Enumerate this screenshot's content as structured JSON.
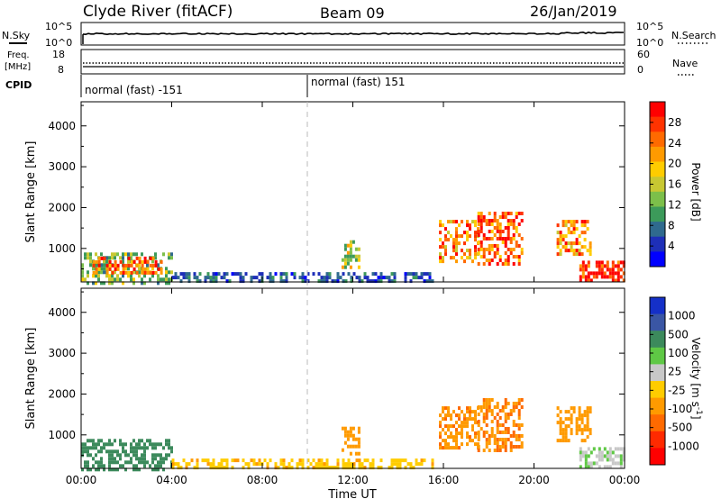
{
  "header": {
    "station": "Clyde River (fitACF)",
    "beam": "Beam 09",
    "date": "26/Jan/2019"
  },
  "top_panels": {
    "nsky_label": "N.Sky",
    "nsky_ticks": [
      "10^5",
      "10^0"
    ],
    "nsearch_label": "N.Search",
    "nsearch_ticks": [
      "10^5",
      "10^0"
    ],
    "freq_label": "Freq.",
    "freq_unit": "[MHz]",
    "freq_ticks": [
      "18",
      "8"
    ],
    "nave_label": "Nave",
    "nave_ticks": [
      "60",
      "0"
    ],
    "cpid_label": "CPID",
    "cpid_segments": [
      {
        "label": "normal (fast) -151",
        "start_hour": 0,
        "end_hour": 10
      },
      {
        "label": "normal (fast) 151",
        "start_hour": 10,
        "end_hour": 24
      }
    ]
  },
  "colorbars": {
    "power": {
      "label": "Power [dB]",
      "ticks": [
        "28",
        "24",
        "20",
        "16",
        "12",
        "8",
        "4"
      ],
      "colors": [
        "#ff0000",
        "#ff3300",
        "#ff6a00",
        "#ff9a00",
        "#ffcc00",
        "#c8c832",
        "#7cbf4a",
        "#3c9a5a",
        "#2f6a8e",
        "#1e2fb8",
        "#0000ff"
      ]
    },
    "velocity": {
      "label": "Velocity [m s^-1]",
      "ticks": [
        "1000",
        "500",
        "100",
        "25",
        "-25",
        "-100",
        "-500",
        "-1000"
      ],
      "colors": [
        "#1530c8",
        "#3a56a4",
        "#3c8a5c",
        "#5fc845",
        "#c8c8c8",
        "#ffcc00",
        "#ff9a00",
        "#ff6a00",
        "#ff2a00",
        "#ff0000"
      ]
    }
  },
  "chart_data": [
    {
      "type": "heatmap",
      "quantity": "Power",
      "ylabel": "Slant Range [km]",
      "ytick_labels": [
        "1000",
        "2000",
        "3000",
        "4000"
      ],
      "ylim": [
        180,
        4590
      ],
      "xlim": [
        0,
        24
      ],
      "scale_label": "Power [dB]",
      "scale_ticks": [
        4,
        8,
        12,
        16,
        20,
        24,
        28
      ],
      "regions": [
        {
          "t0": 0.0,
          "t1": 4.0,
          "r0": 180,
          "r1": 900,
          "level": 16
        },
        {
          "t0": 0.5,
          "t1": 3.5,
          "r0": 400,
          "r1": 800,
          "level": 26
        },
        {
          "t0": 4.0,
          "t1": 15.5,
          "r0": 180,
          "r1": 420,
          "level": 8
        },
        {
          "t0": 11.5,
          "t1": 12.3,
          "r0": 500,
          "r1": 1200,
          "level": 18
        },
        {
          "t0": 15.8,
          "t1": 17.5,
          "r0": 700,
          "r1": 1700,
          "level": 24
        },
        {
          "t0": 17.5,
          "t1": 19.5,
          "r0": 600,
          "r1": 1900,
          "level": 26
        },
        {
          "t0": 21.0,
          "t1": 22.5,
          "r0": 900,
          "r1": 1700,
          "level": 24
        },
        {
          "t0": 22.0,
          "t1": 24.0,
          "r0": 180,
          "r1": 700,
          "level": 28
        }
      ]
    },
    {
      "type": "heatmap",
      "quantity": "Velocity",
      "ylabel": "Slant Range [km]",
      "ytick_labels": [
        "1000",
        "2000",
        "3000",
        "4000"
      ],
      "ylim": [
        180,
        4590
      ],
      "xlim": [
        0,
        24
      ],
      "xlabel": "Time UT",
      "xtick_labels": [
        "00:00",
        "04:00",
        "08:00",
        "12:00",
        "16:00",
        "20:00",
        "00:00"
      ],
      "scale_label": "Velocity [m s^-1]",
      "scale_ticks": [
        -1000,
        -500,
        -100,
        -25,
        25,
        100,
        500,
        1000
      ],
      "regions": [
        {
          "t0": 0.0,
          "t1": 4.0,
          "r0": 180,
          "r1": 900,
          "level": 200
        },
        {
          "t0": 4.0,
          "t1": 15.5,
          "r0": 180,
          "r1": 420,
          "level": -80
        },
        {
          "t0": 11.5,
          "t1": 12.3,
          "r0": 500,
          "r1": 1200,
          "level": -300
        },
        {
          "t0": 15.8,
          "t1": 17.5,
          "r0": 700,
          "r1": 1700,
          "level": -400
        },
        {
          "t0": 17.5,
          "t1": 19.5,
          "r0": 600,
          "r1": 1900,
          "level": -450
        },
        {
          "t0": 21.0,
          "t1": 22.5,
          "r0": 900,
          "r1": 1700,
          "level": -300
        },
        {
          "t0": 22.0,
          "t1": 24.0,
          "r0": 180,
          "r1": 700,
          "level": 20
        }
      ]
    }
  ]
}
